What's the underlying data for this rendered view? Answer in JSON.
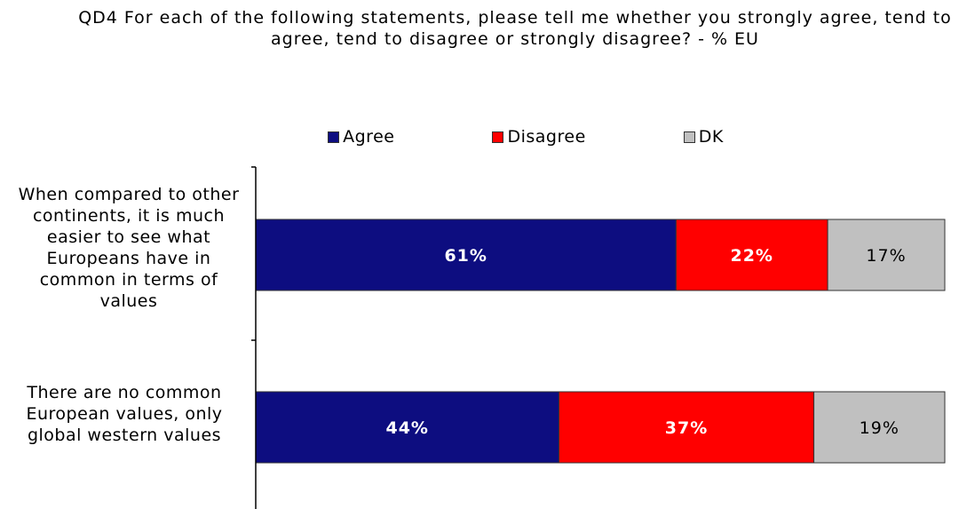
{
  "chart_data": {
    "type": "bar",
    "orientation": "horizontal",
    "stacked": true,
    "title": "QD4 For each of the following statements, please tell me whether you strongly agree, tend to agree, tend to disagree or strongly disagree? - % EU",
    "categories": [
      "When compared to other continents, it is much easier to see what Europeans have in common in terms of values",
      "There are no common European values, only global western values"
    ],
    "series": [
      {
        "name": "Agree",
        "values": [
          61,
          44
        ],
        "labels": [
          "61%",
          "44%"
        ],
        "color": "#0d0d80",
        "label_color": "#ffffff"
      },
      {
        "name": "Disagree",
        "values": [
          22,
          37
        ],
        "labels": [
          "22%",
          "37%"
        ],
        "color": "#ff0000",
        "label_color": "#ffffff"
      },
      {
        "name": "DK",
        "values": [
          17,
          19
        ],
        "labels": [
          "17%",
          "19%"
        ],
        "color": "#c0c0c0",
        "label_color": "#000000"
      }
    ],
    "xlim": [
      0,
      100
    ],
    "grid": false,
    "legend": "top-center"
  }
}
